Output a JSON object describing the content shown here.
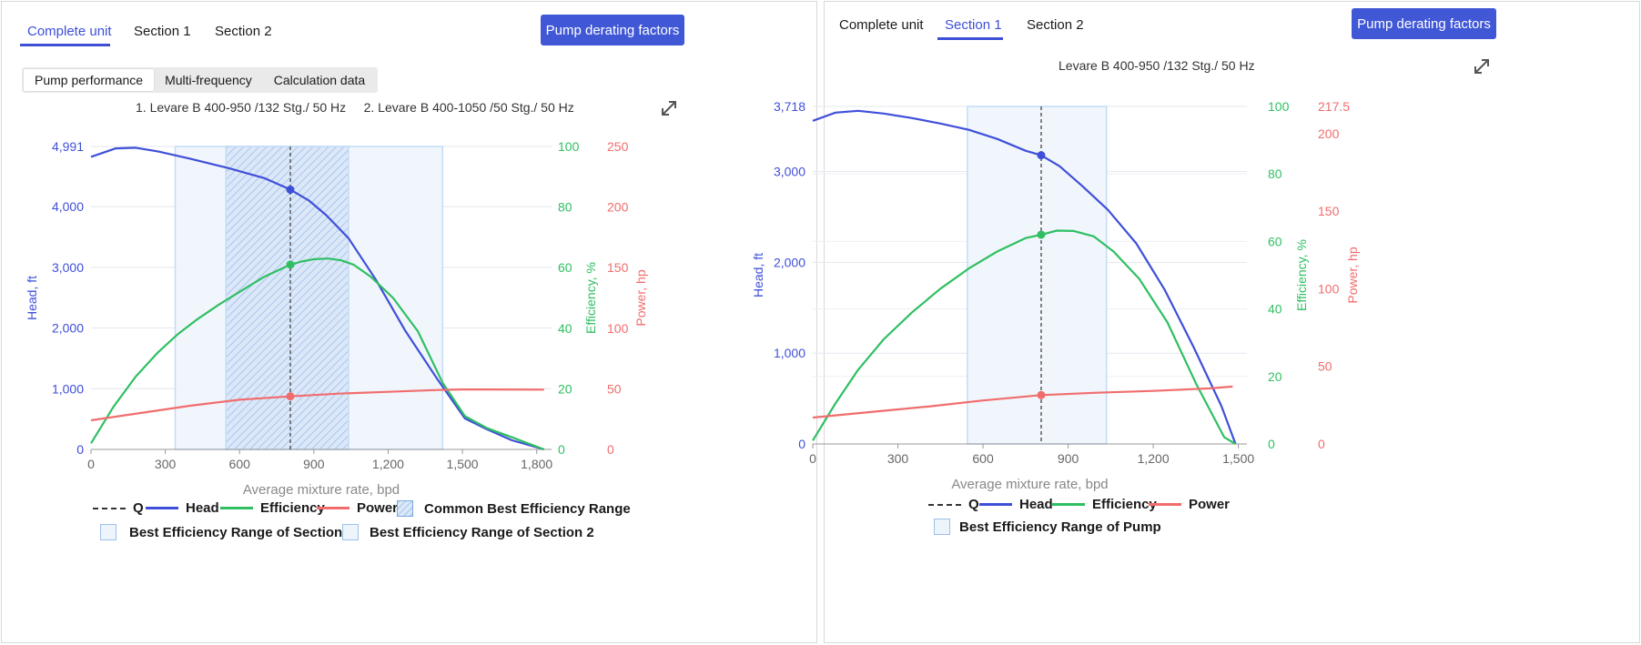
{
  "colors": {
    "accent": "#3d4fd6",
    "head": "#3f4fd9",
    "efficiency": "#2fbf62",
    "power": "#f16d6d",
    "q_line": "#444444",
    "range_fill": "#eef4fc",
    "range_border": "#c4dbf5"
  },
  "left": {
    "tabs": [
      {
        "label": "Complete unit",
        "active": true
      },
      {
        "label": "Section 1",
        "active": false
      },
      {
        "label": "Section 2",
        "active": false
      }
    ],
    "derate_button": "Pump derating factors",
    "subtabs": [
      {
        "label": "Pump performance",
        "active": true
      },
      {
        "label": "Multi-frequency",
        "active": false
      },
      {
        "label": "Calculation data",
        "active": false
      }
    ],
    "chart_title": "1. Levare B 400-950 /132 Stg./ 50 Hz     2. Levare B 400-1050 /50 Stg./ 50 Hz",
    "expand_icon": "expand-arrows-icon",
    "legend": {
      "q": "Q",
      "head": "Head",
      "efficiency": "Efficiency",
      "power": "Power",
      "common": "Common Best Efficiency Range",
      "sec1": "Best Efficiency Range of Section 1",
      "sec2": "Best Efficiency Range of Section 2"
    }
  },
  "right": {
    "tabs": [
      {
        "label": "Complete unit",
        "active": false
      },
      {
        "label": "Section 1",
        "active": true
      },
      {
        "label": "Section 2",
        "active": false
      }
    ],
    "derate_button": "Pump derating factors",
    "chart_title": "Levare B 400-950 /132 Stg./ 50 Hz",
    "expand_icon": "expand-arrows-icon",
    "legend": {
      "q": "Q",
      "head": "Head",
      "efficiency": "Efficiency",
      "power": "Power",
      "pump": "Best Efficiency Range of Pump"
    }
  },
  "chart_data": [
    {
      "type": "line",
      "xlabel": "Average mixture rate, bpd",
      "ylabel_head": "Head, ft",
      "ylabel_eff": "Efficiency, %",
      "ylabel_power": "Power, hp",
      "xlim": [
        0,
        1860
      ],
      "xticks": [
        0,
        300,
        600,
        900,
        1200,
        1500,
        1800
      ],
      "xtick_labels": [
        "0",
        "300",
        "600",
        "900",
        "1,200",
        "1,500",
        "1,800"
      ],
      "head_ylim": [
        0,
        4991
      ],
      "head_ticks": [
        0,
        1000,
        2000,
        3000,
        4000,
        4991
      ],
      "head_tick_labels": [
        "0",
        "1,000",
        "2,000",
        "3,000",
        "4,000",
        "4,991"
      ],
      "eff_ylim": [
        0,
        100
      ],
      "eff_ticks": [
        0,
        20,
        40,
        60,
        80,
        100
      ],
      "power_ylim": [
        0,
        250
      ],
      "power_ticks": [
        0,
        50,
        100,
        150,
        200,
        250
      ],
      "q_value": 805,
      "ranges": {
        "sec1": [
          340,
          1040
        ],
        "sec2": [
          545,
          1420
        ],
        "common": [
          545,
          1040
        ]
      },
      "series": [
        {
          "name": "Head",
          "axis": "head",
          "x": [
            0,
            100,
            180,
            270,
            400,
            550,
            700,
            805,
            880,
            950,
            1040,
            1150,
            1270,
            1400,
            1510,
            1600,
            1700,
            1830
          ],
          "y": [
            4820,
            4960,
            4970,
            4910,
            4790,
            4640,
            4470,
            4280,
            4100,
            3860,
            3480,
            2800,
            1950,
            1150,
            510,
            330,
            150,
            0
          ]
        },
        {
          "name": "Efficiency",
          "axis": "eff",
          "x": [
            0,
            90,
            180,
            270,
            350,
            430,
            520,
            600,
            700,
            805,
            850,
            900,
            960,
            1010,
            1060,
            1130,
            1220,
            1320,
            1420,
            1510,
            1600,
            1700,
            1830
          ],
          "y": [
            2,
            14,
            24,
            32,
            38,
            43,
            48,
            52,
            57,
            61,
            62,
            62.8,
            63,
            62.4,
            61,
            57,
            50,
            39,
            22,
            11,
            7,
            4,
            0
          ],
          "markers": [
            805
          ]
        },
        {
          "name": "Power",
          "axis": "power",
          "x": [
            0,
            200,
            400,
            600,
            805,
            1000,
            1200,
            1400,
            1500,
            1600,
            1830
          ],
          "y": [
            24,
            30,
            36,
            41,
            43.8,
            46,
            47.5,
            49,
            49.5,
            49.5,
            49.3
          ],
          "markers": [
            805
          ]
        }
      ]
    },
    {
      "type": "line",
      "xlabel": "Average mixture rate, bpd",
      "ylabel_head": "Head, ft",
      "ylabel_eff": "Efficiency, %",
      "ylabel_power": "Power, hp",
      "xlim": [
        0,
        1530
      ],
      "xticks": [
        0,
        300,
        600,
        900,
        1200,
        1500
      ],
      "xtick_labels": [
        "0",
        "300",
        "600",
        "900",
        "1,200",
        "1,500"
      ],
      "head_ylim": [
        0,
        3718
      ],
      "head_ticks": [
        0,
        1000,
        2000,
        3000,
        3718
      ],
      "head_tick_labels": [
        "0",
        "1,000",
        "2,000",
        "3,000",
        "3,718"
      ],
      "eff_ylim": [
        0,
        100
      ],
      "eff_ticks": [
        0,
        20,
        40,
        60,
        80,
        100
      ],
      "power_ylim": [
        0,
        217.5
      ],
      "power_ticks": [
        0,
        50,
        100,
        150,
        200,
        217.5
      ],
      "power_tick_labels": [
        "0",
        "50",
        "100",
        "150",
        "200",
        "217.5"
      ],
      "q_value": 805,
      "ranges": {
        "pump": [
          545,
          1035
        ]
      },
      "series": [
        {
          "name": "Head",
          "axis": "head",
          "x": [
            0,
            80,
            160,
            250,
            350,
            450,
            550,
            650,
            750,
            805,
            870,
            950,
            1040,
            1140,
            1240,
            1340,
            1440,
            1490
          ],
          "y": [
            3560,
            3650,
            3670,
            3640,
            3590,
            3530,
            3460,
            3360,
            3230,
            3180,
            3060,
            2840,
            2580,
            2210,
            1700,
            1080,
            420,
            0
          ]
        },
        {
          "name": "Efficiency",
          "axis": "eff",
          "x": [
            0,
            80,
            160,
            250,
            350,
            450,
            550,
            650,
            750,
            805,
            860,
            920,
            990,
            1060,
            1150,
            1250,
            1350,
            1450,
            1490
          ],
          "y": [
            1,
            12,
            22,
            31,
            39,
            46,
            52,
            57,
            61,
            62,
            63.2,
            63.1,
            61.5,
            57,
            49,
            36,
            18,
            2,
            0
          ],
          "markers": [
            805
          ]
        },
        {
          "name": "Power",
          "axis": "power",
          "x": [
            0,
            200,
            400,
            600,
            805,
            1000,
            1200,
            1400,
            1480
          ],
          "y": [
            17,
            20.5,
            24,
            28,
            31.5,
            33,
            34.2,
            35.8,
            37
          ]
        }
      ]
    }
  ]
}
